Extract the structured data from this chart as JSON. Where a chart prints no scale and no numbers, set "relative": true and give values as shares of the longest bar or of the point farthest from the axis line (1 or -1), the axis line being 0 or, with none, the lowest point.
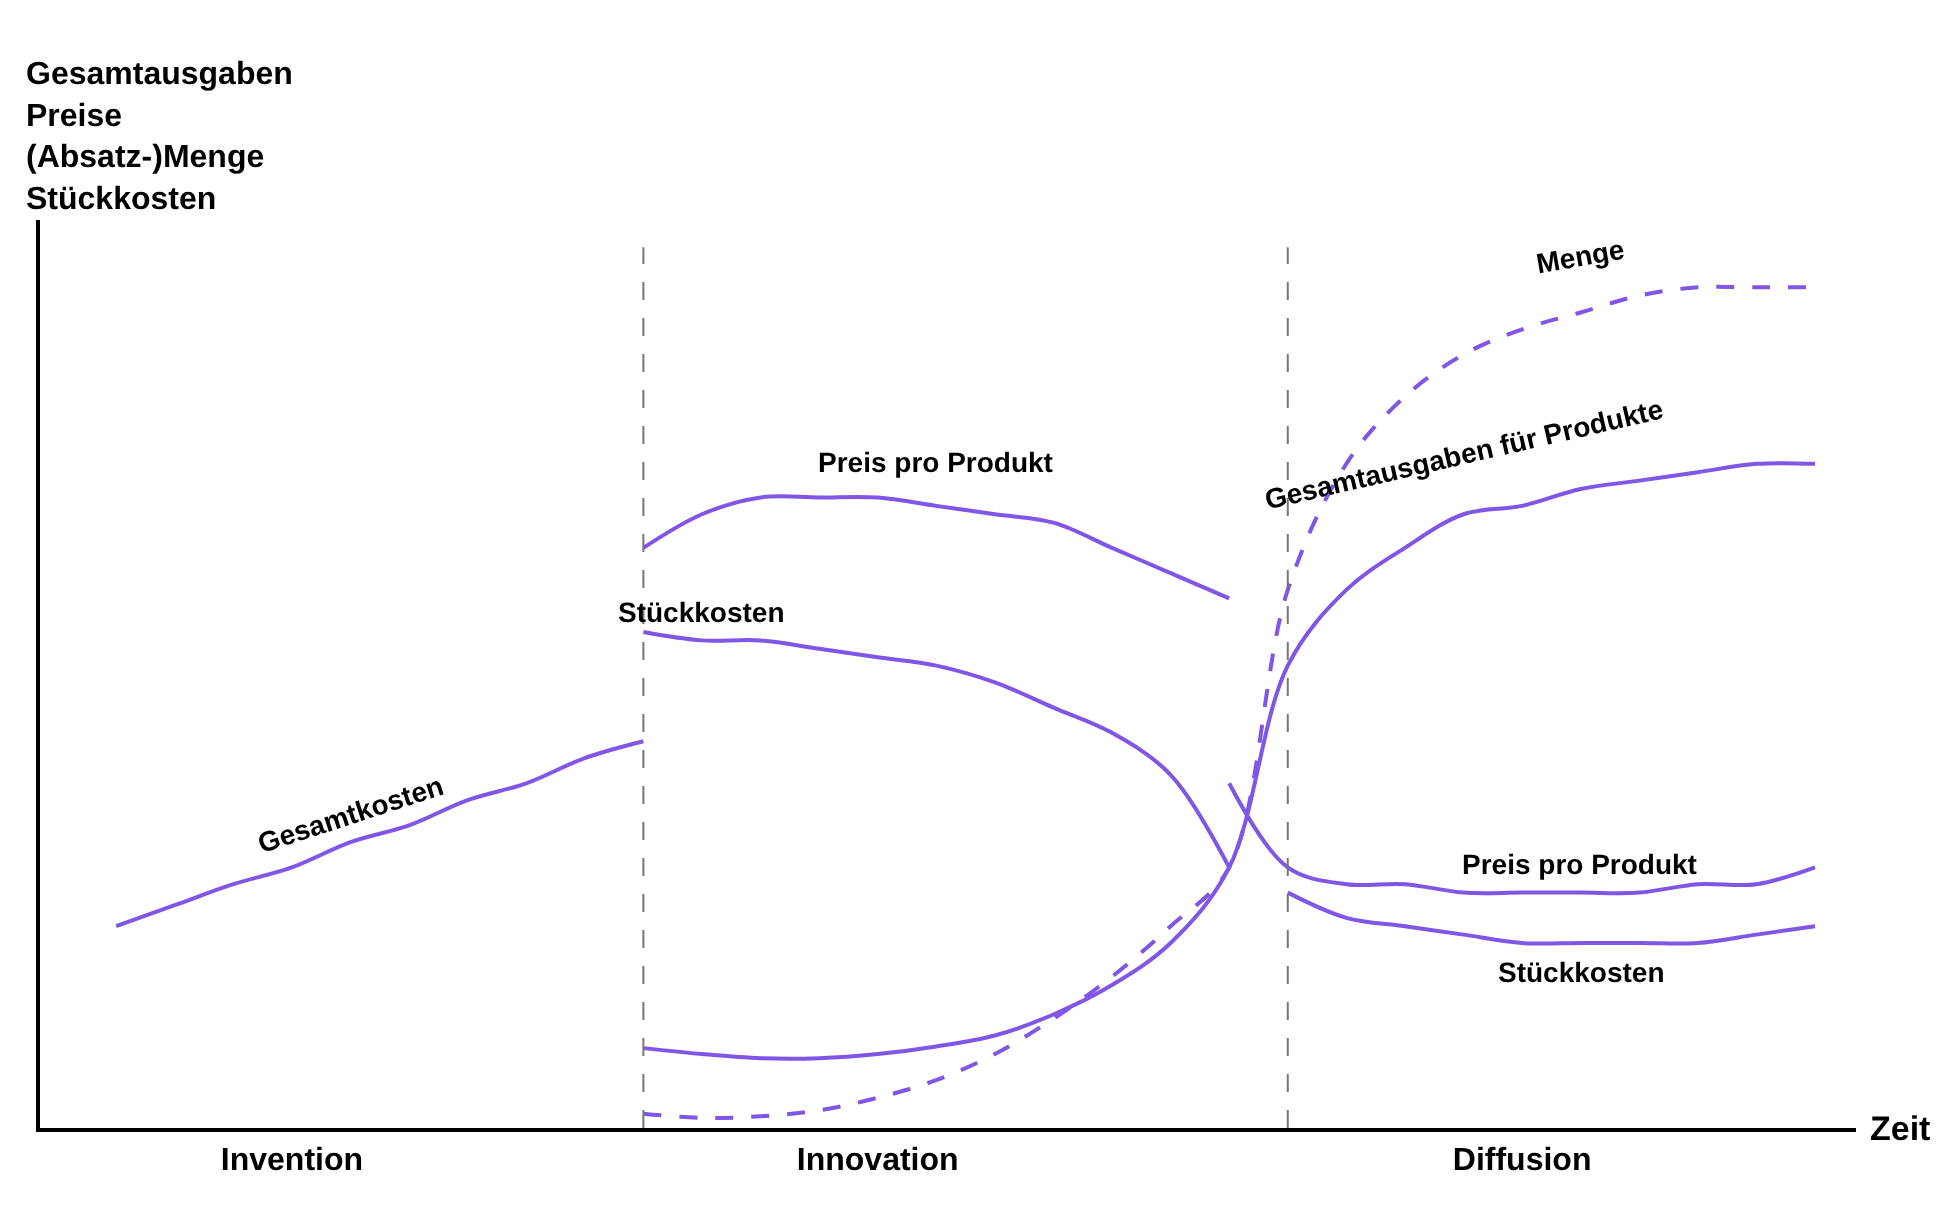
{
  "chart_data": {
    "type": "line",
    "relative": true,
    "xlabel": "Zeit",
    "ylabel": "Gesamtausgaben\nPreise\n(Absatz-)Menge\nStückkosten",
    "categories": [
      null,
      null,
      null,
      null,
      "Invention",
      null,
      null,
      null,
      null,
      null,
      null,
      null,
      null,
      null,
      "Innovation",
      null,
      null,
      null,
      null,
      null,
      null,
      null,
      null,
      null,
      null,
      "Diffusion",
      null,
      null,
      null,
      null,
      null
    ],
    "series": [
      {
        "name": "Gesamtkosten",
        "color": "#7f56e6",
        "values": [
          null,
          0.24,
          0.265,
          0.29,
          0.31,
          0.34,
          0.36,
          0.39,
          0.41,
          0.44,
          0.46,
          null,
          null,
          null,
          null,
          null,
          null,
          null,
          null,
          null,
          null,
          null,
          null,
          null,
          null,
          null,
          null,
          null,
          null,
          null,
          null
        ]
      },
      {
        "name": "Preis pro Produkt",
        "color": "#7f56e6",
        "values": [
          null,
          null,
          null,
          null,
          null,
          null,
          null,
          null,
          null,
          null,
          0.69,
          0.73,
          0.75,
          0.75,
          0.75,
          0.74,
          0.73,
          0.72,
          0.69,
          0.66,
          0.63,
          null,
          null,
          null,
          null,
          null,
          null,
          null,
          null,
          null,
          null
        ]
      },
      {
        "name": "Stückkosten",
        "color": "#7f56e6",
        "values": [
          null,
          null,
          null,
          null,
          null,
          null,
          null,
          null,
          null,
          null,
          0.59,
          0.58,
          0.58,
          0.57,
          0.56,
          0.55,
          0.53,
          0.5,
          0.47,
          0.42,
          0.31,
          null,
          null,
          null,
          null,
          null,
          null,
          null,
          null,
          null,
          null
        ]
      },
      {
        "name": "Gesamtausgaben für Produkte",
        "color": "#7f56e6",
        "values": [
          null,
          null,
          null,
          null,
          null,
          null,
          null,
          null,
          null,
          null,
          0.095,
          0.088,
          0.083,
          0.083,
          0.088,
          0.097,
          0.11,
          0.135,
          0.17,
          0.22,
          0.31,
          0.55,
          0.64,
          0.69,
          0.73,
          0.74,
          0.76,
          0.77,
          0.78,
          0.79,
          0.79
        ]
      },
      {
        "name": "Menge",
        "color": "#7f56e6",
        "line_style": "dashed",
        "values": [
          null,
          null,
          null,
          null,
          null,
          null,
          null,
          null,
          null,
          null,
          0.017,
          0.012,
          0.014,
          0.021,
          0.036,
          0.057,
          0.088,
          0.13,
          0.18,
          0.24,
          0.31,
          0.64,
          0.79,
          0.87,
          0.92,
          0.95,
          0.97,
          0.99,
          1.0,
          1.0,
          1.0
        ]
      },
      {
        "name": "Preis pro Produkt",
        "color": "#7f56e6",
        "values": [
          null,
          null,
          null,
          null,
          null,
          null,
          null,
          null,
          null,
          null,
          null,
          null,
          null,
          null,
          null,
          null,
          null,
          null,
          null,
          null,
          0.41,
          0.31,
          0.29,
          0.29,
          0.28,
          0.28,
          0.28,
          0.28,
          0.29,
          0.29,
          0.31
        ]
      },
      {
        "name": "Stückkosten",
        "color": "#7f56e6",
        "values": [
          null,
          null,
          null,
          null,
          null,
          null,
          null,
          null,
          null,
          null,
          null,
          null,
          null,
          null,
          null,
          null,
          null,
          null,
          null,
          null,
          null,
          0.28,
          0.25,
          0.24,
          0.23,
          0.22,
          0.22,
          0.22,
          0.22,
          0.23,
          0.24
        ]
      }
    ],
    "legend": false
  }
}
